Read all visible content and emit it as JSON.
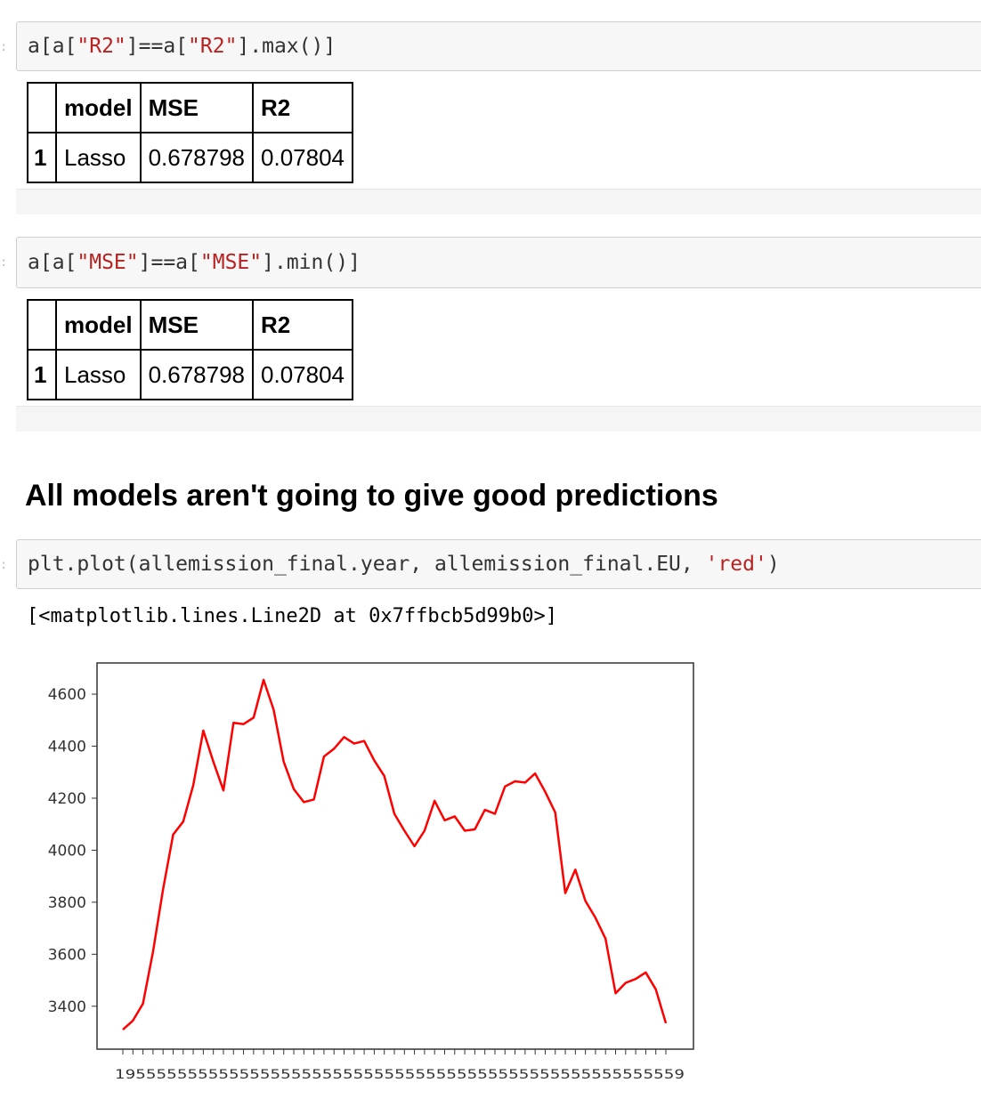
{
  "cells": [
    {
      "code": [
        {
          "t": "a[a[",
          "c": ""
        },
        {
          "t": "\"R2\"",
          "c": "str"
        },
        {
          "t": "]==a[",
          "c": ""
        },
        {
          "t": "\"R2\"",
          "c": "str"
        },
        {
          "t": "].max()]",
          "c": ""
        }
      ],
      "table": {
        "headers": [
          "",
          "model",
          "MSE",
          "R2"
        ],
        "rows": [
          [
            "1",
            "Lasso",
            "0.678798",
            "0.07804"
          ]
        ]
      }
    },
    {
      "code": [
        {
          "t": "a[a[",
          "c": ""
        },
        {
          "t": "\"MSE\"",
          "c": "str"
        },
        {
          "t": "]==a[",
          "c": ""
        },
        {
          "t": "\"MSE\"",
          "c": "str"
        },
        {
          "t": "].min()]",
          "c": ""
        }
      ],
      "table": {
        "headers": [
          "",
          "model",
          "MSE",
          "R2"
        ],
        "rows": [
          [
            "1",
            "Lasso",
            "0.678798",
            "0.07804"
          ]
        ]
      }
    }
  ],
  "markdown_heading": "All models aren't going to give good predictions",
  "plot_cell": {
    "code": [
      {
        "t": "plt.plot(allemission_final.year, allemission_final.EU, ",
        "c": ""
      },
      {
        "t": "'red'",
        "c": "str"
      },
      {
        "t": ")",
        "c": ""
      }
    ],
    "output_text": "[<matplotlib.lines.Line2D at 0x7ffbcb5d99b0>]"
  },
  "chart_data": {
    "type": "line",
    "series": [
      {
        "color": "#ff0000",
        "values": [
          3310,
          3345,
          3410,
          3610,
          3850,
          4060,
          4110,
          4250,
          4460,
          4340,
          4230,
          4490,
          4485,
          4510,
          4655,
          4540,
          4340,
          4235,
          4185,
          4195,
          4360,
          4390,
          4435,
          4410,
          4420,
          4345,
          4285,
          4140,
          4075,
          4015,
          4075,
          4190,
          4115,
          4130,
          4075,
          4080,
          4155,
          4140,
          4245,
          4265,
          4260,
          4295,
          4225,
          4145,
          3835,
          3925,
          3805,
          3740,
          3660,
          3450,
          3490,
          3505,
          3530,
          3465,
          3335
        ]
      }
    ],
    "yticks": [
      3400,
      3600,
      3800,
      4000,
      4200,
      4400,
      4600
    ],
    "ylim": [
      3235,
      4720
    ],
    "xlabel_overlap_text": "1955555555555555555555555555555555555555555555555555559",
    "grid": false
  }
}
